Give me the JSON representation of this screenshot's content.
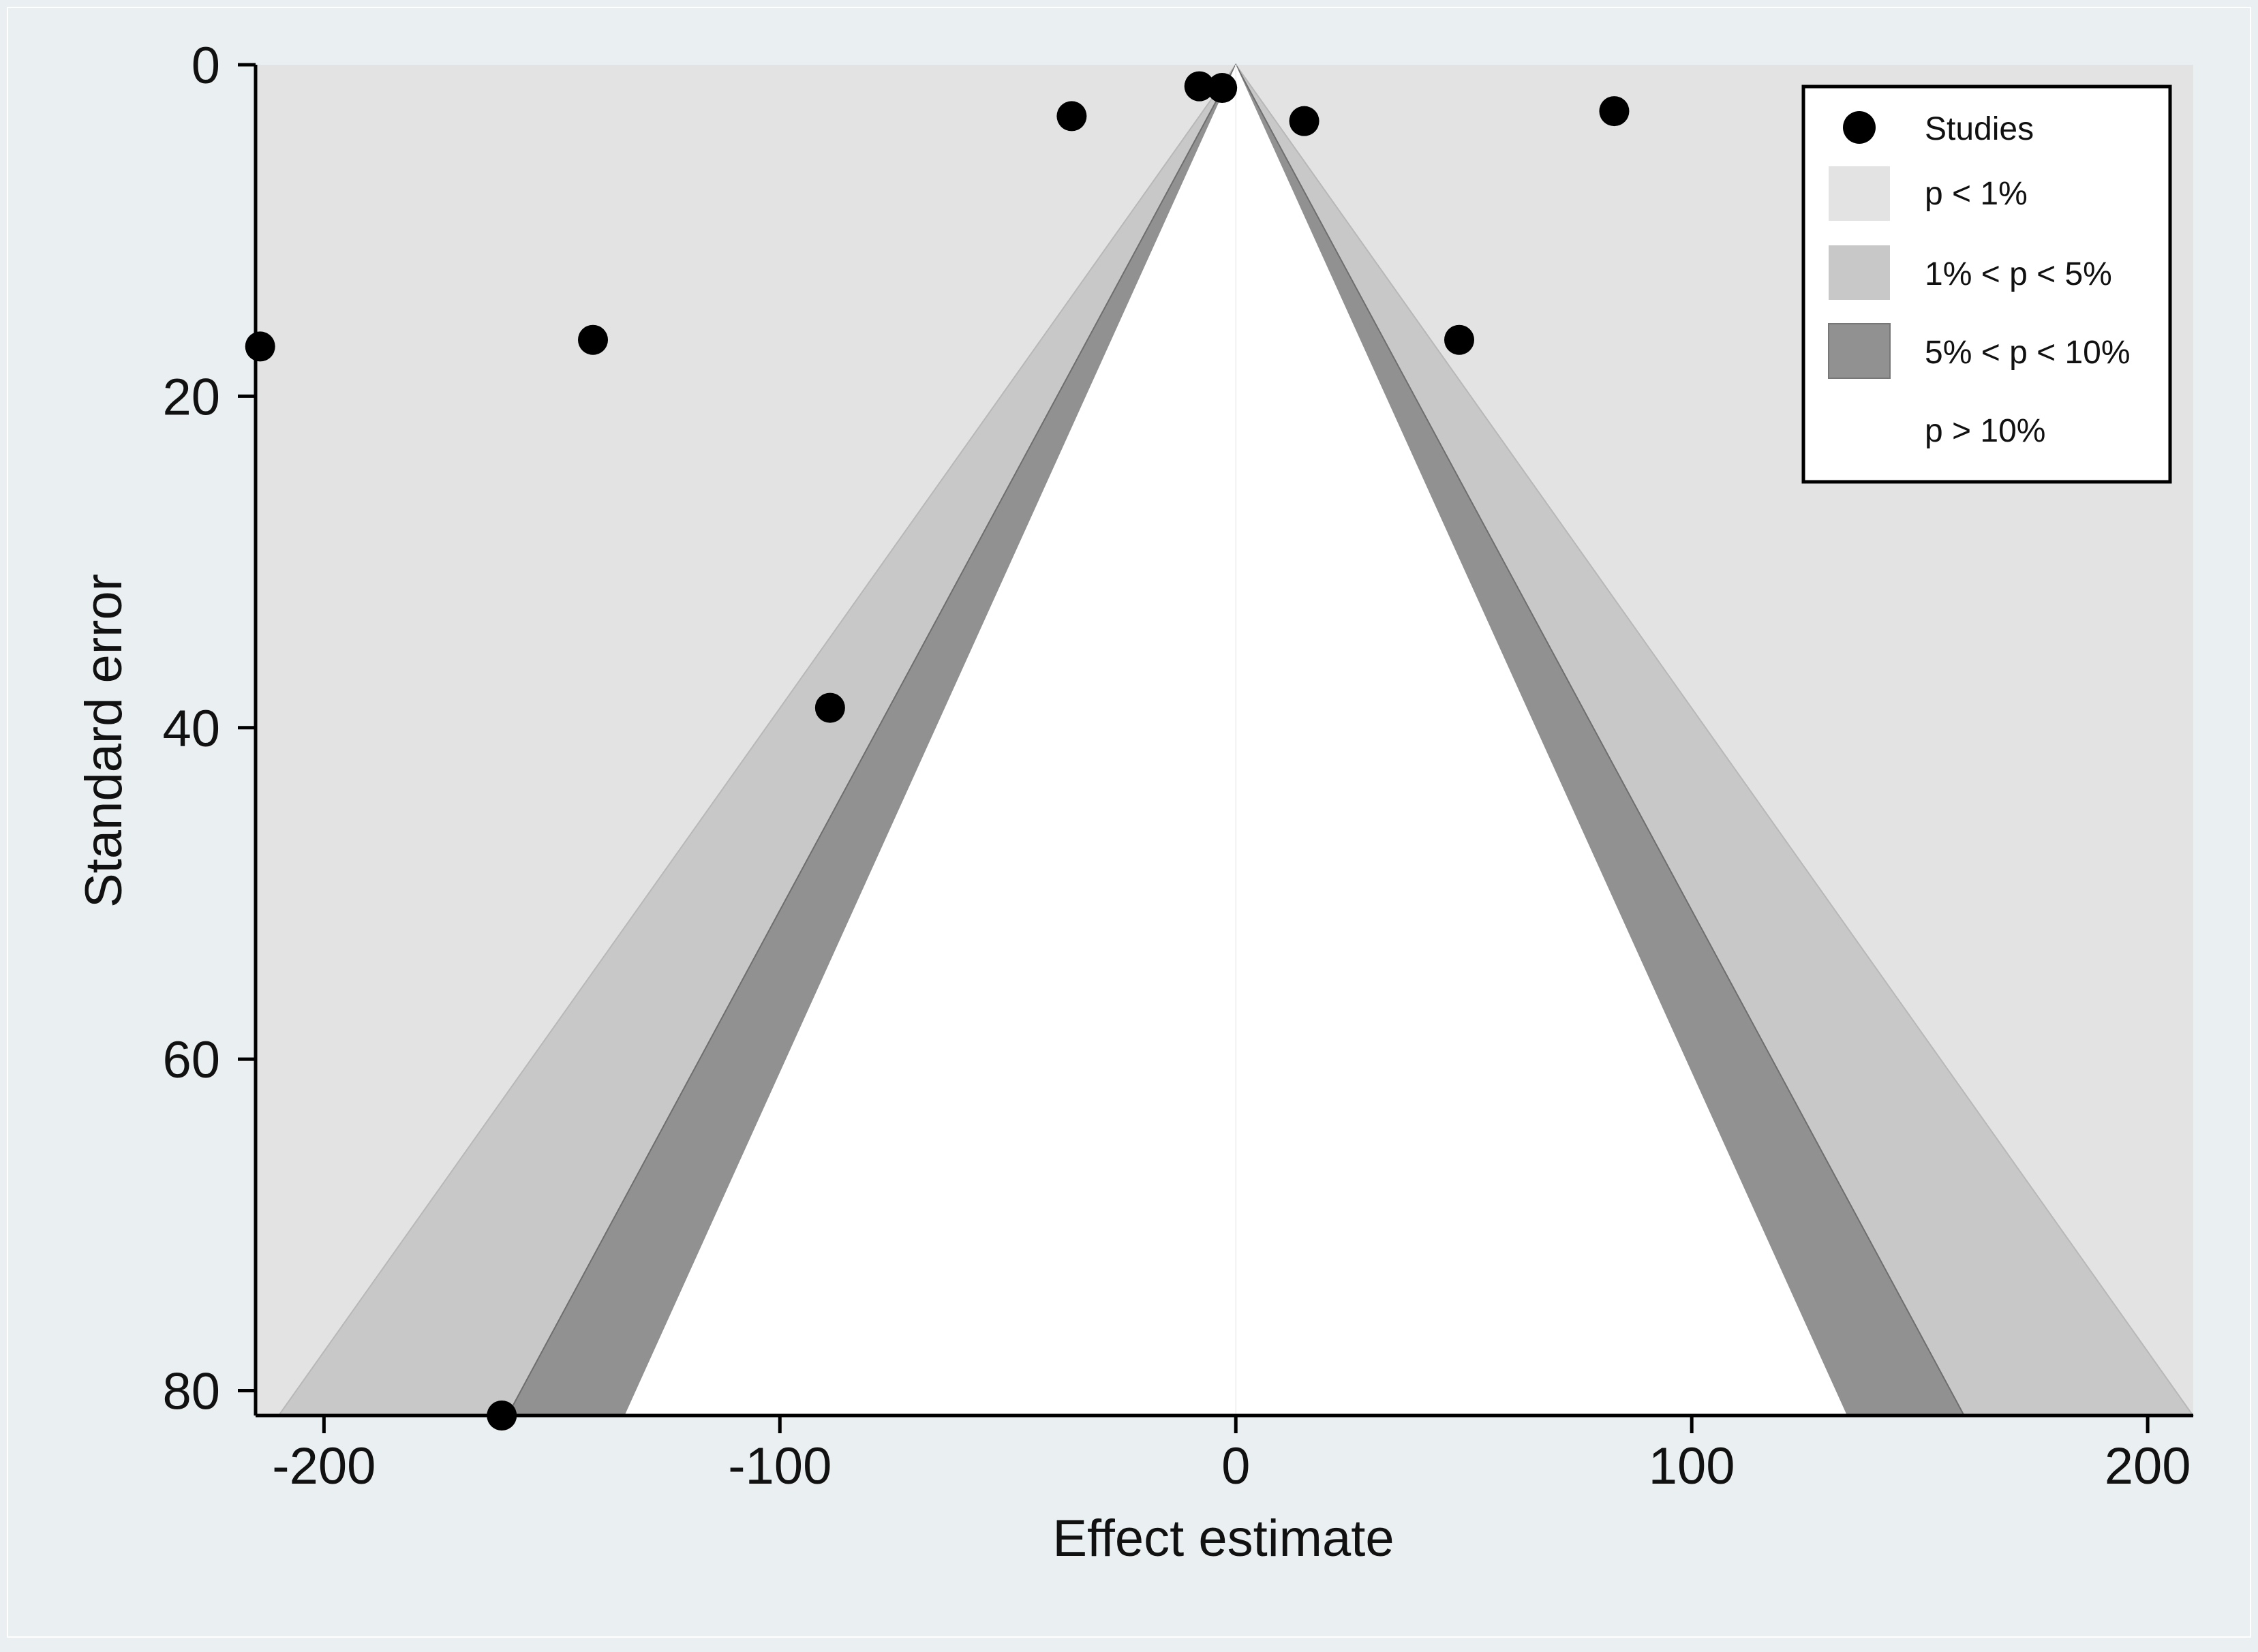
{
  "chart_data": {
    "type": "scatter",
    "subtype": "contour-enhanced funnel plot",
    "title": "",
    "xlabel": "Effect estimate",
    "ylabel": "Standard error",
    "xlim": [
      -215,
      210
    ],
    "ylim": [
      0,
      81.5
    ],
    "y_reversed": true,
    "x_ticks": [
      -200,
      -100,
      0,
      100,
      200
    ],
    "x_tick_labels": [
      "-200",
      "-100",
      "0",
      "100",
      "200"
    ],
    "y_ticks": [
      0,
      20,
      40,
      60,
      80
    ],
    "y_tick_labels": [
      "0",
      "20",
      "40",
      "60",
      "80"
    ],
    "grid": false,
    "legend_position": "top-right",
    "contours": [
      {
        "label": "p < 1%",
        "z": 2.576,
        "color": "#e3e3e3"
      },
      {
        "label": "1% < p < 5%",
        "z": 1.96,
        "color": "#c8c8c8"
      },
      {
        "label": "5% < p < 10%",
        "z": 1.645,
        "color": "#919191"
      },
      {
        "label": "p > 10%",
        "z": 0,
        "color": "#ffffff"
      }
    ],
    "series": [
      {
        "name": "Studies",
        "color": "#000000",
        "points": [
          {
            "x": -8,
            "y": 1.3
          },
          {
            "x": -3,
            "y": 1.4
          },
          {
            "x": -36,
            "y": 3.1
          },
          {
            "x": 15,
            "y": 3.4
          },
          {
            "x": 83,
            "y": 2.8
          },
          {
            "x": -214,
            "y": 17.0
          },
          {
            "x": -141,
            "y": 16.6
          },
          {
            "x": 49,
            "y": 16.6
          },
          {
            "x": -89,
            "y": 38.8
          },
          {
            "x": -161,
            "y": 81.5
          }
        ]
      }
    ]
  }
}
